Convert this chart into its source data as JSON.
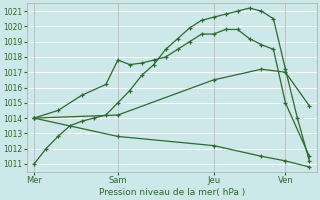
{
  "xlabel": "Pression niveau de la mer( hPa )",
  "background_color": "#cce8e8",
  "grid_color": "#ffffff",
  "line_color": "#2d6a2d",
  "ylim": [
    1010.5,
    1021.5
  ],
  "yticks": [
    1011,
    1012,
    1013,
    1014,
    1015,
    1016,
    1017,
    1018,
    1019,
    1020,
    1021
  ],
  "xlim": [
    -0.3,
    11.8
  ],
  "day_labels": [
    "Mer",
    "Sam",
    "Jeu",
    "Ven"
  ],
  "day_positions": [
    0,
    3.5,
    7.5,
    10.5
  ],
  "vline_positions": [
    0,
    3.5,
    7.5,
    10.5
  ],
  "series": [
    {
      "x": [
        0.0,
        0.5,
        1.0,
        1.5,
        2.0,
        2.5,
        3.0,
        3.5,
        4.0,
        4.5,
        5.0,
        5.5,
        6.0,
        6.5,
        7.0,
        7.5,
        8.0,
        8.5,
        9.0,
        9.5,
        10.0,
        10.5,
        11.0,
        11.5
      ],
      "y": [
        1011.0,
        1012.0,
        1012.8,
        1013.5,
        1013.8,
        1014.0,
        1014.2,
        1015.0,
        1015.8,
        1016.8,
        1017.5,
        1018.5,
        1019.2,
        1019.9,
        1020.4,
        1020.6,
        1020.8,
        1021.0,
        1021.2,
        1021.0,
        1020.5,
        1017.2,
        1014.0,
        1011.2
      ]
    },
    {
      "x": [
        0.0,
        1.0,
        2.0,
        3.0,
        3.5,
        4.0,
        4.5,
        5.0,
        5.5,
        6.0,
        6.5,
        7.0,
        7.5,
        8.0,
        8.5,
        9.0,
        9.5,
        10.0,
        10.5,
        11.5
      ],
      "y": [
        1014.0,
        1014.5,
        1015.5,
        1016.2,
        1017.8,
        1017.5,
        1017.6,
        1017.8,
        1018.0,
        1018.5,
        1019.0,
        1019.5,
        1019.5,
        1019.8,
        1019.8,
        1019.2,
        1018.8,
        1018.5,
        1015.0,
        1011.5
      ]
    },
    {
      "x": [
        0.0,
        3.5,
        7.5,
        9.5,
        10.5,
        11.5
      ],
      "y": [
        1014.0,
        1014.2,
        1016.5,
        1017.2,
        1017.0,
        1014.8
      ]
    },
    {
      "x": [
        0.0,
        3.5,
        7.5,
        9.5,
        10.5,
        11.5
      ],
      "y": [
        1014.0,
        1012.8,
        1012.2,
        1011.5,
        1011.2,
        1010.8
      ]
    }
  ]
}
